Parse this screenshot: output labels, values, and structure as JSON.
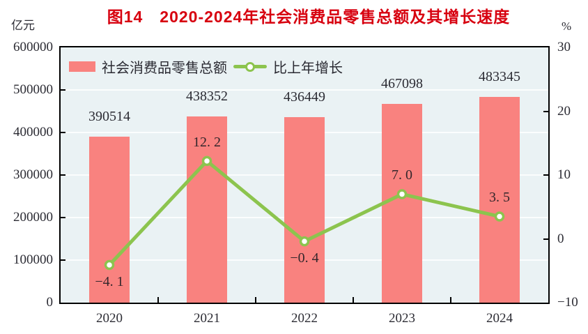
{
  "title": "图14　2020-2024年社会消费品零售总额及其增长速度",
  "colors": {
    "bar": "#F9827F",
    "line": "#8CC44E",
    "marker_fill": "#FFFFFF",
    "plot_bg": "#EAF2F4",
    "gridline": "#FBFDFD",
    "axis": "#000000",
    "title": "#D7000F",
    "text": "#2B2B33"
  },
  "chart_data": {
    "type": "bar",
    "subtype": "bar+line combo, dual axis",
    "title": "图14　2020-2024年社会消费品零售总额及其增长速度",
    "categories": [
      "2020",
      "2021",
      "2022",
      "2023",
      "2024"
    ],
    "series": [
      {
        "name": "社会消费品零售总额",
        "type": "bar",
        "axis": "left",
        "values": [
          390514,
          438352,
          436449,
          467098,
          483345
        ],
        "labels": [
          "390514",
          "438352",
          "436449",
          "467098",
          "483345"
        ]
      },
      {
        "name": "比上年增长",
        "type": "line",
        "axis": "right",
        "values": [
          -4.1,
          12.2,
          -0.4,
          7.0,
          3.5
        ],
        "labels": [
          "−4. 1",
          "12. 2",
          "−0. 4",
          "7. 0",
          "3. 5"
        ],
        "label_side": [
          "below",
          "above",
          "below",
          "above",
          "above"
        ]
      }
    ],
    "left_axis": {
      "unit": "亿元",
      "min": 0,
      "max": 600000,
      "step": 100000,
      "tick_labels": [
        "600000",
        "500000",
        "400000",
        "300000",
        "200000",
        "100000",
        "0"
      ]
    },
    "right_axis": {
      "unit": "%",
      "min": -10,
      "max": 30,
      "step": 10,
      "tick_labels": [
        "30",
        "20",
        "10",
        "0",
        "−10"
      ]
    },
    "legend": {
      "bar_label": "社会消费品零售总额",
      "line_label": "比上年增长",
      "position": "top-left inside plot"
    },
    "grid": "horizontal white gridlines at left-axis steps"
  }
}
